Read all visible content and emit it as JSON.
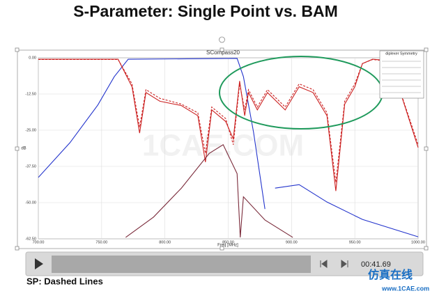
{
  "slide_title": "S-Parameter: Single Point vs. BAM",
  "chart_data": {
    "type": "line",
    "title": "SCompass20",
    "x_label": "Freq [MHz]",
    "y_label": "dB",
    "legend_title": "diplexer Symmetry",
    "watermark": "1CAE.COM",
    "xlim": [
      700,
      1000
    ],
    "xticks": [
      {
        "value": 700,
        "label": "700.00"
      },
      {
        "value": 750,
        "label": "750.00"
      },
      {
        "value": 800,
        "label": "800.00"
      },
      {
        "value": 850,
        "label": "850.00"
      },
      {
        "value": 900,
        "label": "900.00"
      },
      {
        "value": 950,
        "label": "950.00"
      },
      {
        "value": 1000,
        "label": "1000.00"
      }
    ],
    "ylim": [
      -62.5,
      0
    ],
    "yticks": [
      {
        "value": 0,
        "label": "0.00"
      },
      {
        "value": -12.5,
        "label": "-12.50"
      },
      {
        "value": -25,
        "label": "-25.00"
      },
      {
        "value": -37.5,
        "label": "-37.50"
      },
      {
        "value": -50,
        "label": "-50.00"
      },
      {
        "value": -62.5,
        "label": "-62.50"
      }
    ],
    "grid": true,
    "series": [
      {
        "color": "#2233cc",
        "dash": false,
        "x": [
          700,
          725,
          747,
          760,
          771,
          857,
          862,
          870,
          879,
          883,
          887,
          906,
          928,
          956,
          1000
        ],
        "values": [
          -41.3,
          -29.3,
          -16.3,
          -6.5,
          -0.5,
          -0.2,
          -6.5,
          -25.7,
          -52.2,
          null,
          -45,
          -43.8,
          -49.8,
          -55.8,
          -61.8
        ]
      },
      {
        "color": "#cc2222",
        "dash": false,
        "x": [
          700,
          763,
          774,
          780,
          785,
          796,
          813,
          826,
          832,
          837,
          848,
          854,
          859,
          863,
          866,
          873,
          881,
          895,
          906,
          917,
          928,
          935,
          942,
          950,
          956,
          964,
          978,
          1000
        ],
        "values": [
          -0.5,
          -0.5,
          -10,
          -26,
          -12,
          -15,
          -16.5,
          -20,
          -36,
          -18,
          -22,
          -28,
          -8,
          -20,
          -12,
          -18,
          -12,
          -18,
          -10,
          -12,
          -20,
          -46,
          -16,
          -10,
          -2,
          -0.5,
          -1,
          -31
        ]
      },
      {
        "color": "#cc2222",
        "dash": true,
        "x": [
          700,
          763,
          774,
          780,
          785,
          796,
          813,
          826,
          832,
          837,
          848,
          854,
          859,
          863,
          866,
          873,
          881,
          895,
          906,
          917,
          928,
          935,
          942,
          950,
          956,
          964,
          978,
          1000
        ],
        "values": [
          -0.6,
          -0.6,
          -9,
          -24,
          -11,
          -14,
          -16,
          -19,
          -33,
          -17,
          -21,
          -30,
          -9,
          -18,
          -11,
          -17,
          -11,
          -17,
          -9,
          -11,
          -19,
          -43,
          -15,
          -9,
          -2,
          -0.6,
          -1.2,
          -30
        ]
      },
      {
        "color": "#7a2a3a",
        "dash": false,
        "x": [
          769,
          791,
          813,
          835,
          846,
          857,
          859.5,
          862,
          879,
          901
        ],
        "values": [
          -62,
          -55,
          -45,
          -33,
          -30,
          -40,
          -62,
          -48,
          -56,
          -62
        ]
      }
    ]
  },
  "player": {
    "time": "00:41.69"
  },
  "caption": "SP: Dashed Lines",
  "logo": {
    "name": "仿真在线",
    "url": "www.1CAE.com"
  }
}
